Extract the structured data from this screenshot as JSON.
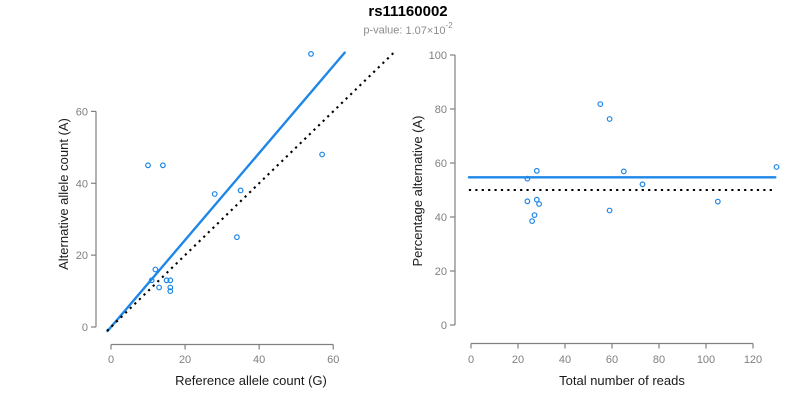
{
  "header": {
    "title": "rs11160002",
    "p_label": "p-value:",
    "p_mantissa": "1.07×10",
    "p_exponent": "-2"
  },
  "colors": {
    "accent_blue": "#1E87E8",
    "axis_gray": "#808080",
    "tick_label_gray": "#7F7F7F",
    "axis_title_black": "#1A1A1A",
    "subtitle_gray": "#8C8C8C",
    "dotted_black": "#000000"
  },
  "chart_data": [
    {
      "id": "allele-counts-scatter",
      "type": "scatter",
      "xlabel": "Reference allele count (G)",
      "ylabel": "Alternative allele count (A)",
      "xticks": [
        0,
        20,
        40,
        60
      ],
      "yticks": [
        0,
        20,
        40,
        60
      ],
      "xlim": [
        -1.2,
        76.8
      ],
      "ylim": [
        -1.1,
        76.35
      ],
      "grid": false,
      "legend": false,
      "points": [
        [
          10,
          45
        ],
        [
          14,
          45
        ],
        [
          12,
          16
        ],
        [
          11,
          13
        ],
        [
          28,
          37
        ],
        [
          35,
          38
        ],
        [
          54,
          76
        ],
        [
          13,
          11
        ],
        [
          15,
          13
        ],
        [
          16,
          13
        ],
        [
          34,
          25
        ],
        [
          57,
          48
        ],
        [
          16,
          11
        ],
        [
          16,
          10
        ]
      ],
      "lines": [
        {
          "name": "fit-line",
          "kind": "abline",
          "slope": 1.21,
          "intercept": 0,
          "style": "solid",
          "color": "blue"
        },
        {
          "name": "identity-line",
          "kind": "abline",
          "slope": 1,
          "intercept": 0,
          "style": "dotted",
          "color": "black"
        }
      ]
    },
    {
      "id": "percentage-vs-reads-scatter",
      "type": "scatter",
      "xlabel": "Total number of reads",
      "ylabel": "Percentage alternative (A)",
      "xticks": [
        0,
        20,
        40,
        60,
        80,
        100,
        120
      ],
      "yticks": [
        0,
        20,
        40,
        60,
        80,
        100
      ],
      "xlim": [
        -0.9,
        129.5
      ],
      "ylim": [
        -4,
        104
      ],
      "grid": false,
      "legend": false,
      "points": [
        [
          55,
          81.8
        ],
        [
          59,
          76.3
        ],
        [
          28,
          57.1
        ],
        [
          24,
          54.2
        ],
        [
          65,
          56.9
        ],
        [
          73,
          52.1
        ],
        [
          130,
          58.5
        ],
        [
          24,
          45.8
        ],
        [
          28,
          46.4
        ],
        [
          29,
          44.8
        ],
        [
          59,
          42.4
        ],
        [
          105,
          45.7
        ],
        [
          27,
          40.7
        ],
        [
          26,
          38.5
        ]
      ],
      "lines": [
        {
          "name": "fit-percentage-line",
          "kind": "hline",
          "y": 54.7,
          "style": "solid",
          "color": "blue"
        },
        {
          "name": "fifty-percent-line",
          "kind": "hline",
          "y": 50,
          "style": "dotted",
          "color": "black"
        }
      ]
    }
  ]
}
